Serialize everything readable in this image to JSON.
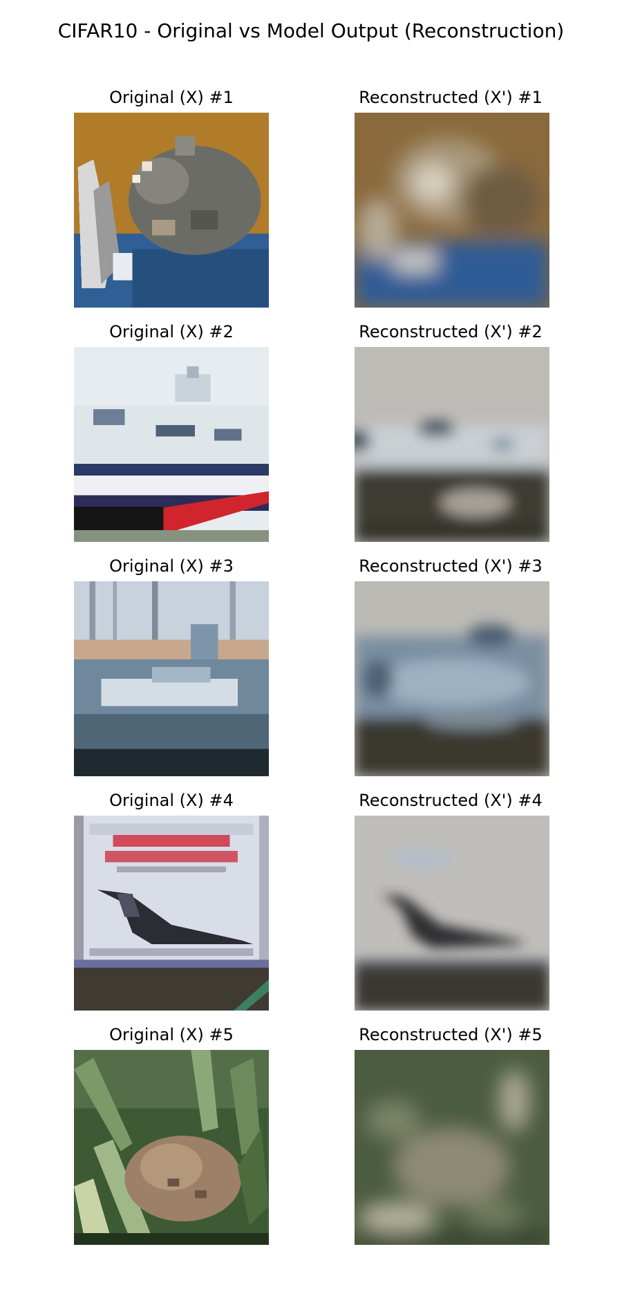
{
  "figure": {
    "title": "CIFAR10 - Original vs Model Output (Reconstruction)"
  },
  "rows": [
    {
      "original": {
        "label": "Original (X) #1",
        "subject": "cat"
      },
      "reconstructed": {
        "label": "Reconstructed (X') #1",
        "subject": "cat"
      }
    },
    {
      "original": {
        "label": "Original (X) #2",
        "subject": "ship"
      },
      "reconstructed": {
        "label": "Reconstructed (X') #2",
        "subject": "ship"
      }
    },
    {
      "original": {
        "label": "Original (X) #3",
        "subject": "ship"
      },
      "reconstructed": {
        "label": "Reconstructed (X') #3",
        "subject": "ship"
      }
    },
    {
      "original": {
        "label": "Original (X) #4",
        "subject": "airplane"
      },
      "reconstructed": {
        "label": "Reconstructed (X') #4",
        "subject": "airplane"
      }
    },
    {
      "original": {
        "label": "Original (X) #5",
        "subject": "frog"
      },
      "reconstructed": {
        "label": "Reconstructed (X') #5",
        "subject": "frog"
      }
    }
  ]
}
